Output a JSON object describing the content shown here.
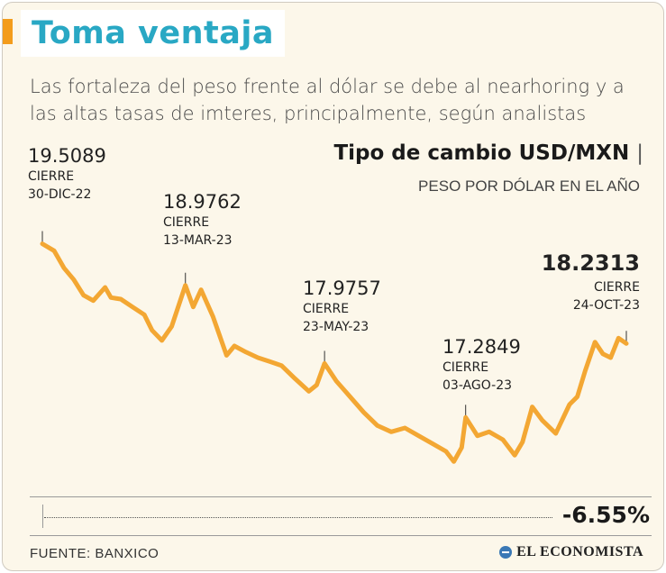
{
  "header": {
    "title": "Toma ventaja",
    "subtitle": "Las fortaleza del peso frente al dólar se debe al nearhoring y a las altas tasas de imteres, principalmente, según analistas"
  },
  "colors": {
    "title": "#29a8c4",
    "accent": "#f39c1c",
    "line": "#f3a733",
    "background": "#fcf7ea"
  },
  "chart_data": {
    "type": "line",
    "title": "Tipo de cambio USD/MXN",
    "subtitle": "PESO POR DÓLAR EN EL AÑO",
    "xlim": [
      "2022-12-30",
      "2023-10-24"
    ],
    "ylim": [
      16.4,
      20.0
    ],
    "grid": false,
    "series": [
      {
        "points": [
          [
            "2022-12-30",
            19.5089
          ],
          [
            "2023-01-05",
            19.42
          ],
          [
            "2023-01-10",
            19.2
          ],
          [
            "2023-01-15",
            19.05
          ],
          [
            "2023-01-20",
            18.85
          ],
          [
            "2023-01-25",
            18.78
          ],
          [
            "2023-01-31",
            18.95
          ],
          [
            "2023-02-03",
            18.82
          ],
          [
            "2023-02-08",
            18.8
          ],
          [
            "2023-02-14",
            18.7
          ],
          [
            "2023-02-20",
            18.6
          ],
          [
            "2023-02-24",
            18.4
          ],
          [
            "2023-03-01",
            18.27
          ],
          [
            "2023-03-06",
            18.45
          ],
          [
            "2023-03-13",
            18.9762
          ],
          [
            "2023-03-17",
            18.7
          ],
          [
            "2023-03-21",
            18.92
          ],
          [
            "2023-03-27",
            18.58
          ],
          [
            "2023-04-03",
            18.08
          ],
          [
            "2023-04-07",
            18.2
          ],
          [
            "2023-04-13",
            18.12
          ],
          [
            "2023-04-19",
            18.05
          ],
          [
            "2023-04-25",
            18.0
          ],
          [
            "2023-05-01",
            17.95
          ],
          [
            "2023-05-08",
            17.78
          ],
          [
            "2023-05-15",
            17.62
          ],
          [
            "2023-05-19",
            17.7
          ],
          [
            "2023-05-23",
            17.9757
          ],
          [
            "2023-05-29",
            17.75
          ],
          [
            "2023-06-05",
            17.55
          ],
          [
            "2023-06-12",
            17.35
          ],
          [
            "2023-06-19",
            17.18
          ],
          [
            "2023-06-26",
            17.1
          ],
          [
            "2023-07-03",
            17.15
          ],
          [
            "2023-07-10",
            17.05
          ],
          [
            "2023-07-17",
            16.95
          ],
          [
            "2023-07-24",
            16.85
          ],
          [
            "2023-07-28",
            16.72
          ],
          [
            "2023-08-01",
            16.9
          ],
          [
            "2023-08-03",
            17.2849
          ],
          [
            "2023-08-09",
            17.05
          ],
          [
            "2023-08-15",
            17.1
          ],
          [
            "2023-08-22",
            17.0
          ],
          [
            "2023-08-28",
            16.8
          ],
          [
            "2023-09-01",
            16.97
          ],
          [
            "2023-09-06",
            17.42
          ],
          [
            "2023-09-11",
            17.25
          ],
          [
            "2023-09-18",
            17.08
          ],
          [
            "2023-09-25",
            17.45
          ],
          [
            "2023-09-29",
            17.55
          ],
          [
            "2023-10-03",
            17.88
          ],
          [
            "2023-10-08",
            18.25
          ],
          [
            "2023-10-12",
            18.1
          ],
          [
            "2023-10-16",
            18.05
          ],
          [
            "2023-10-20",
            18.3
          ],
          [
            "2023-10-24",
            18.2313
          ]
        ]
      }
    ],
    "annotations": [
      {
        "date": "2022-12-30",
        "value": "19.5089",
        "label": "CIERRE",
        "date_label": "30-DIC-22"
      },
      {
        "date": "2023-03-13",
        "value": "18.9762",
        "label": "CIERRE",
        "date_label": "13-MAR-23"
      },
      {
        "date": "2023-05-23",
        "value": "17.9757",
        "label": "CIERRE",
        "date_label": "23-MAY-23"
      },
      {
        "date": "2023-08-03",
        "value": "17.2849",
        "label": "CIERRE",
        "date_label": "03-AGO-23"
      },
      {
        "date": "2023-10-24",
        "value": "18.2313",
        "label": "CIERRE",
        "date_label": "24-OCT-23"
      }
    ],
    "change": "-6.55%"
  },
  "footer": {
    "source": "FUENTE: BANXICO",
    "brand": "EL ECONOMISTA",
    "brand_icon": "globe-icon"
  }
}
